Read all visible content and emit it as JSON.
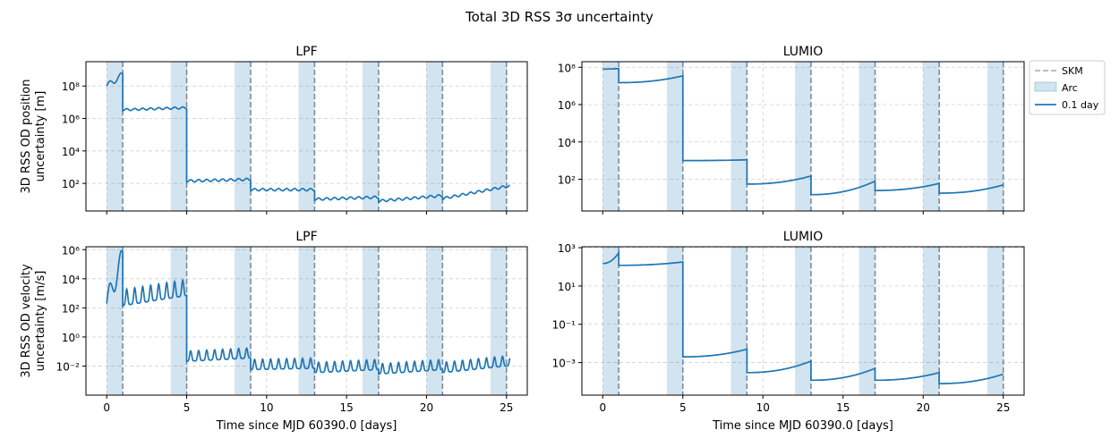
{
  "figure": {
    "suptitle": "Total 3D RSS 3σ uncertainty",
    "legend": {
      "placement": "outside-right-top",
      "entries": [
        "SKM",
        "Arc",
        "0.1 day"
      ]
    },
    "colors": {
      "line": "#1f77b4",
      "arc_fill": "#1f77b4",
      "skm": "#7f8c99",
      "grid": "#cfcfcf"
    }
  },
  "chart_data": [
    {
      "type": "line",
      "title": "LPF",
      "ylabel": "3D RSS OD position\nuncertainty [m]",
      "xlabel": "",
      "xlim": [
        -1.3,
        26.3
      ],
      "ylim_log10": [
        0.3,
        9.5
      ],
      "yscale": "log",
      "xticks": [
        0,
        5,
        10,
        15,
        20,
        25
      ],
      "xtick_labels_shown": false,
      "yticks": [
        {
          "exp": 2,
          "label": "10²"
        },
        {
          "exp": 4,
          "label": "10⁴"
        },
        {
          "exp": 6,
          "label": "10⁶"
        },
        {
          "exp": 8,
          "label": "10⁸"
        }
      ],
      "grid": true,
      "arcs": [
        [
          0,
          1
        ],
        [
          4,
          5
        ],
        [
          8,
          9
        ],
        [
          12,
          13
        ],
        [
          16,
          17
        ],
        [
          20,
          21
        ],
        [
          24,
          25
        ]
      ],
      "skm_times": [
        1,
        5,
        9,
        13,
        17,
        21,
        25
      ],
      "segments": [
        {
          "t0": 0,
          "t1": 1,
          "start": 100000000,
          "end": 500000000
        },
        {
          "t0": 1,
          "t1": 5,
          "start": 3000000,
          "end": 4000000
        },
        {
          "t0": 5,
          "t1": 9,
          "start": 120,
          "end": 150
        },
        {
          "t0": 9,
          "t1": 13,
          "start": 35,
          "end": 35
        },
        {
          "t0": 13,
          "t1": 17,
          "start": 9,
          "end": 12
        },
        {
          "t0": 17,
          "t1": 21,
          "start": 7,
          "end": 15
        },
        {
          "t0": 21,
          "t1": 25.2,
          "start": 10,
          "end": 60
        }
      ],
      "series": [
        {
          "name": "0.1 day"
        }
      ]
    },
    {
      "type": "line",
      "title": "LUMIO",
      "ylabel": "",
      "xlabel": "",
      "xlim": [
        -1.3,
        26.3
      ],
      "ylim_log10": [
        0.3,
        8.3
      ],
      "yscale": "log",
      "xticks": [
        0,
        5,
        10,
        15,
        20,
        25
      ],
      "xtick_labels_shown": false,
      "yticks": [
        {
          "exp": 2,
          "label": "10²"
        },
        {
          "exp": 4,
          "label": "10⁴"
        },
        {
          "exp": 6,
          "label": "10⁶"
        },
        {
          "exp": 8,
          "label": "10⁸"
        }
      ],
      "grid": true,
      "arcs": [
        [
          0,
          1
        ],
        [
          4,
          5
        ],
        [
          8,
          9
        ],
        [
          12,
          13
        ],
        [
          16,
          17
        ],
        [
          20,
          21
        ],
        [
          24,
          25
        ]
      ],
      "skm_times": [
        1,
        5,
        9,
        13,
        17,
        21,
        25
      ],
      "segments": [
        {
          "t0": 0,
          "t1": 1,
          "start": 80000000,
          "end": 85000000
        },
        {
          "t0": 1,
          "t1": 5,
          "start": 15000000,
          "end": 35000000
        },
        {
          "t0": 5,
          "t1": 9,
          "start": 1000,
          "end": 1100
        },
        {
          "t0": 9,
          "t1": 13,
          "start": 55,
          "end": 150
        },
        {
          "t0": 13,
          "t1": 17,
          "start": 15,
          "end": 80
        },
        {
          "t0": 17,
          "t1": 21,
          "start": 25,
          "end": 60
        },
        {
          "t0": 21,
          "t1": 25,
          "start": 18,
          "end": 50
        }
      ],
      "series": [
        {
          "name": "0.1 day"
        }
      ]
    },
    {
      "type": "line",
      "title": "LPF",
      "ylabel": "3D RSS OD velocity\nuncertainty [m/s]",
      "xlabel": "Time since MJD 60390.0 [days]",
      "xlim": [
        -1.3,
        26.3
      ],
      "ylim_log10": [
        -4.0,
        6.2
      ],
      "yscale": "log",
      "xticks": [
        0,
        5,
        10,
        15,
        20,
        25
      ],
      "xtick_labels_shown": true,
      "yticks": [
        {
          "exp": -2,
          "label": "10⁻²"
        },
        {
          "exp": 0,
          "label": "10⁰"
        },
        {
          "exp": 2,
          "label": "10²"
        },
        {
          "exp": 4,
          "label": "10⁴"
        },
        {
          "exp": 6,
          "label": "10⁶"
        }
      ],
      "grid": true,
      "arcs": [
        [
          0,
          1
        ],
        [
          4,
          5
        ],
        [
          8,
          9
        ],
        [
          12,
          13
        ],
        [
          16,
          17
        ],
        [
          20,
          21
        ],
        [
          24,
          25
        ]
      ],
      "skm_times": [
        1,
        5,
        9,
        13,
        17,
        21,
        25
      ],
      "segments": [
        {
          "t0": 0,
          "t1": 1,
          "start": 200,
          "end": 300000
        },
        {
          "t0": 1,
          "t1": 5,
          "start": 200,
          "end": 1000
        },
        {
          "t0": 5,
          "t1": 9,
          "start": 0.03,
          "end": 0.05
        },
        {
          "t0": 9,
          "t1": 13,
          "start": 0.008,
          "end": 0.01
        },
        {
          "t0": 13,
          "t1": 17,
          "start": 0.005,
          "end": 0.008
        },
        {
          "t0": 17,
          "t1": 21,
          "start": 0.004,
          "end": 0.008
        },
        {
          "t0": 21,
          "t1": 25.2,
          "start": 0.005,
          "end": 0.015
        }
      ],
      "series": [
        {
          "name": "0.1 day"
        }
      ]
    },
    {
      "type": "line",
      "title": "LUMIO",
      "ylabel": "",
      "xlabel": "Time since MJD 60390.0 [days]",
      "xlim": [
        -1.3,
        26.3
      ],
      "ylim_log10": [
        -4.7,
        3.05
      ],
      "yscale": "log",
      "xticks": [
        0,
        5,
        10,
        15,
        20,
        25
      ],
      "xtick_labels_shown": true,
      "yticks": [
        {
          "exp": -3,
          "label": "10⁻³"
        },
        {
          "exp": -1,
          "label": "10⁻¹"
        },
        {
          "exp": 1,
          "label": "10¹"
        },
        {
          "exp": 3,
          "label": "10³"
        }
      ],
      "grid": true,
      "arcs": [
        [
          0,
          1
        ],
        [
          4,
          5
        ],
        [
          8,
          9
        ],
        [
          12,
          13
        ],
        [
          16,
          17
        ],
        [
          20,
          21
        ],
        [
          24,
          25
        ]
      ],
      "skm_times": [
        1,
        5,
        9,
        13,
        17,
        21,
        25
      ],
      "segments": [
        {
          "t0": 0,
          "t1": 1,
          "start": 150,
          "end": 550
        },
        {
          "t0": 1,
          "t1": 5,
          "start": 120,
          "end": 180
        },
        {
          "t0": 5,
          "t1": 9,
          "start": 0.002,
          "end": 0.005
        },
        {
          "t0": 9,
          "t1": 13,
          "start": 0.0003,
          "end": 0.0012
        },
        {
          "t0": 13,
          "t1": 17,
          "start": 0.00012,
          "end": 0.0005
        },
        {
          "t0": 17,
          "t1": 21,
          "start": 0.00012,
          "end": 0.0003
        },
        {
          "t0": 21,
          "t1": 25,
          "start": 8e-05,
          "end": 0.00025
        }
      ],
      "series": [
        {
          "name": "0.1 day"
        }
      ]
    }
  ]
}
